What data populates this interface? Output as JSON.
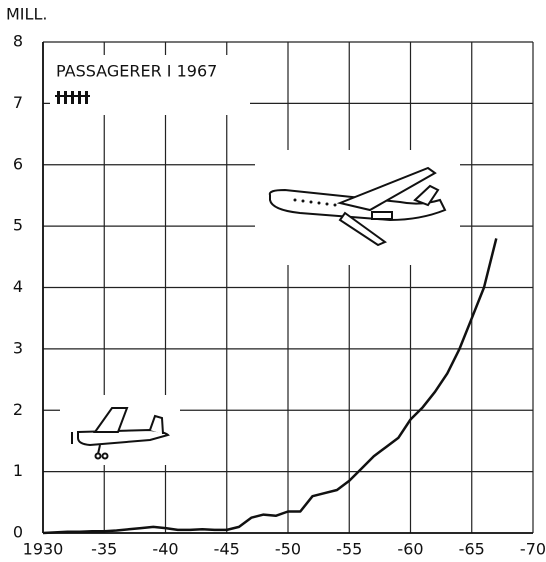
{
  "chart_data": {
    "type": "line",
    "title": "PASSAGERER I 1967",
    "y_label": "MILL.",
    "x": [
      1930,
      1931,
      1932,
      1933,
      1934,
      1935,
      1936,
      1937,
      1938,
      1939,
      1940,
      1941,
      1942,
      1943,
      1944,
      1945,
      1946,
      1947,
      1948,
      1949,
      1950,
      1951,
      1952,
      1953,
      1954,
      1955,
      1956,
      1957,
      1958,
      1959,
      1960,
      1961,
      1962,
      1963,
      1964,
      1965,
      1966,
      1967
    ],
    "values": [
      0,
      0.01,
      0.02,
      0.02,
      0.03,
      0.03,
      0.04,
      0.06,
      0.08,
      0.1,
      0.08,
      0.05,
      0.05,
      0.06,
      0.05,
      0.05,
      0.1,
      0.25,
      0.3,
      0.28,
      0.35,
      0.35,
      0.6,
      0.65,
      0.7,
      0.85,
      1.05,
      1.25,
      1.4,
      1.55,
      1.85,
      2.05,
      2.3,
      2.6,
      3.0,
      3.5,
      4.0,
      4.8
    ],
    "color": "#111111",
    "xlim": [
      1930,
      1970
    ],
    "xticks": [
      1930,
      {
        "value": 1935,
        "label": "-35"
      },
      {
        "value": 1940,
        "label": "-40"
      },
      {
        "value": 1945,
        "label": "-45"
      },
      {
        "value": 1950,
        "label": "-50"
      },
      {
        "value": 1955,
        "label": "-55"
      },
      {
        "value": 1960,
        "label": "-60"
      },
      {
        "value": 1965,
        "label": "-65"
      },
      {
        "value": 1970,
        "label": "-70"
      }
    ],
    "ylim": [
      0,
      8
    ],
    "yticks": [
      0,
      1,
      2,
      3,
      4,
      5,
      6,
      7,
      8
    ],
    "grid": true
  }
}
